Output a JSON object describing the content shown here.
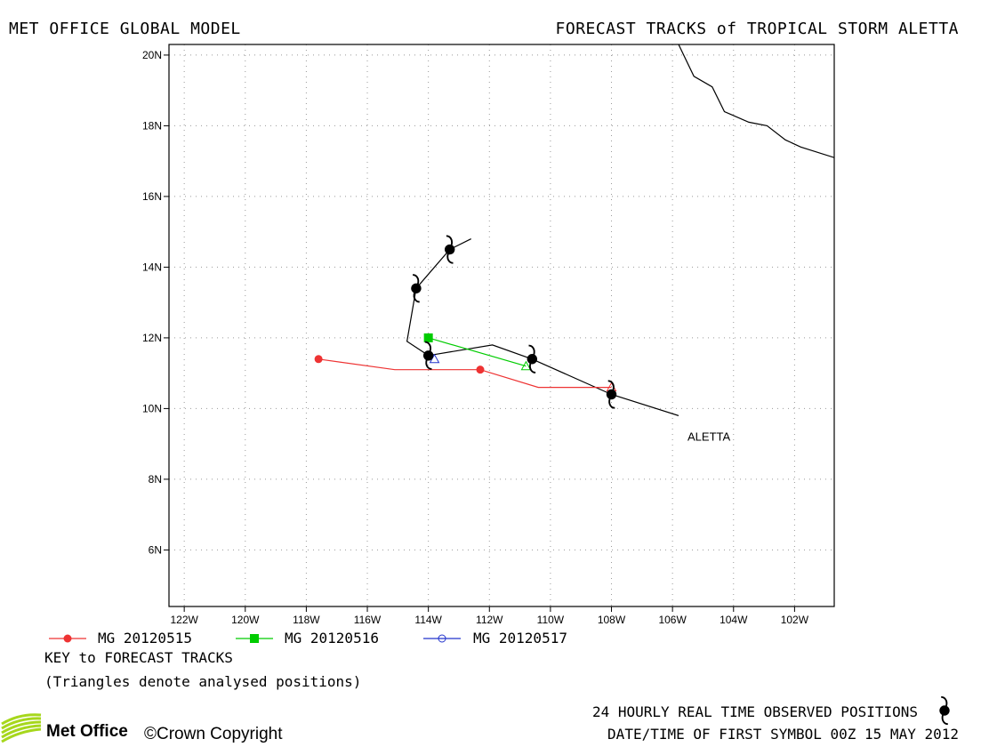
{
  "header": {
    "left_title": "MET OFFICE GLOBAL MODEL",
    "right_title": "FORECAST TRACKS of TROPICAL STORM ALETTA"
  },
  "map": {
    "lon_range": [
      -122.5,
      -100.7
    ],
    "lat_range": [
      4.4,
      20.3
    ],
    "x_ticks": [
      "122W",
      "120W",
      "118W",
      "116W",
      "114W",
      "112W",
      "110W",
      "108W",
      "106W",
      "104W",
      "102W"
    ],
    "y_ticks": [
      "20N",
      "18N",
      "16N",
      "14N",
      "12N",
      "10N",
      "8N",
      "6N"
    ],
    "grid": "dotted",
    "storm_label": "ALETTA",
    "coastline": [
      [
        -105.8,
        20.3
      ],
      [
        -105.3,
        19.4
      ],
      [
        -104.7,
        19.1
      ],
      [
        -104.3,
        18.4
      ],
      [
        -103.5,
        18.1
      ],
      [
        -102.9,
        18.0
      ],
      [
        -102.3,
        17.6
      ],
      [
        -101.8,
        17.4
      ],
      [
        -100.7,
        17.1
      ]
    ]
  },
  "chart_data": {
    "type": "scatter",
    "observed_track": [
      [
        -105.8,
        9.8
      ],
      [
        -108.0,
        10.4
      ],
      [
        -110.6,
        11.4
      ],
      [
        -111.9,
        11.8
      ],
      [
        -114.0,
        11.5
      ],
      [
        -114.7,
        11.9
      ],
      [
        -114.4,
        13.4
      ],
      [
        -113.3,
        14.5
      ],
      [
        -112.6,
        14.8
      ]
    ],
    "observed_positions": [
      [
        -108.0,
        10.4
      ],
      [
        -110.6,
        11.4
      ],
      [
        -114.0,
        11.5
      ],
      [
        -114.4,
        13.4
      ],
      [
        -113.3,
        14.5
      ]
    ],
    "series": [
      {
        "name": "MG 20120515",
        "color": "#ee3333",
        "marker": "circle",
        "points": [
          [
            -117.6,
            11.4
          ],
          [
            -115.1,
            11.1
          ],
          [
            -112.3,
            11.1
          ],
          [
            -110.4,
            10.6
          ],
          [
            -108.0,
            10.6
          ]
        ],
        "markers": [
          [
            -117.6,
            11.4
          ],
          [
            -112.3,
            11.1
          ]
        ],
        "analysed": [
          -108.0,
          10.6
        ]
      },
      {
        "name": "MG 20120516",
        "color": "#00cc00",
        "marker": "square",
        "points": [
          [
            -114.0,
            12.0
          ],
          [
            -110.8,
            11.2
          ]
        ],
        "markers": [
          [
            -114.0,
            12.0
          ]
        ],
        "analysed": [
          -110.8,
          11.2
        ]
      },
      {
        "name": "MG 20120517",
        "color": "#2233cc",
        "marker": "open-circle",
        "points": [
          [
            -113.8,
            11.4
          ]
        ],
        "markers": [],
        "analysed": [
          -113.8,
          11.4
        ]
      }
    ]
  },
  "legend": {
    "items": [
      {
        "label": "MG 20120515",
        "color": "#ee3333",
        "marker": "circle"
      },
      {
        "label": "MG 20120516",
        "color": "#00cc00",
        "marker": "square"
      },
      {
        "label": "MG 20120517",
        "color": "#2233cc",
        "marker": "open-circle"
      }
    ]
  },
  "notes": {
    "key_title": "KEY to FORECAST TRACKS",
    "key_note": "(Triangles denote analysed positions)"
  },
  "footer": {
    "logo": "Met Office",
    "copyright": "©Crown Copyright",
    "observed_label": "24 HOURLY REAL TIME OBSERVED POSITIONS",
    "date_label": "DATE/TIME OF FIRST SYMBOL 00Z 15 MAY 2012",
    "logo_color": "#a6d71c",
    "symbol_icon": "hurricane-symbol-icon"
  }
}
